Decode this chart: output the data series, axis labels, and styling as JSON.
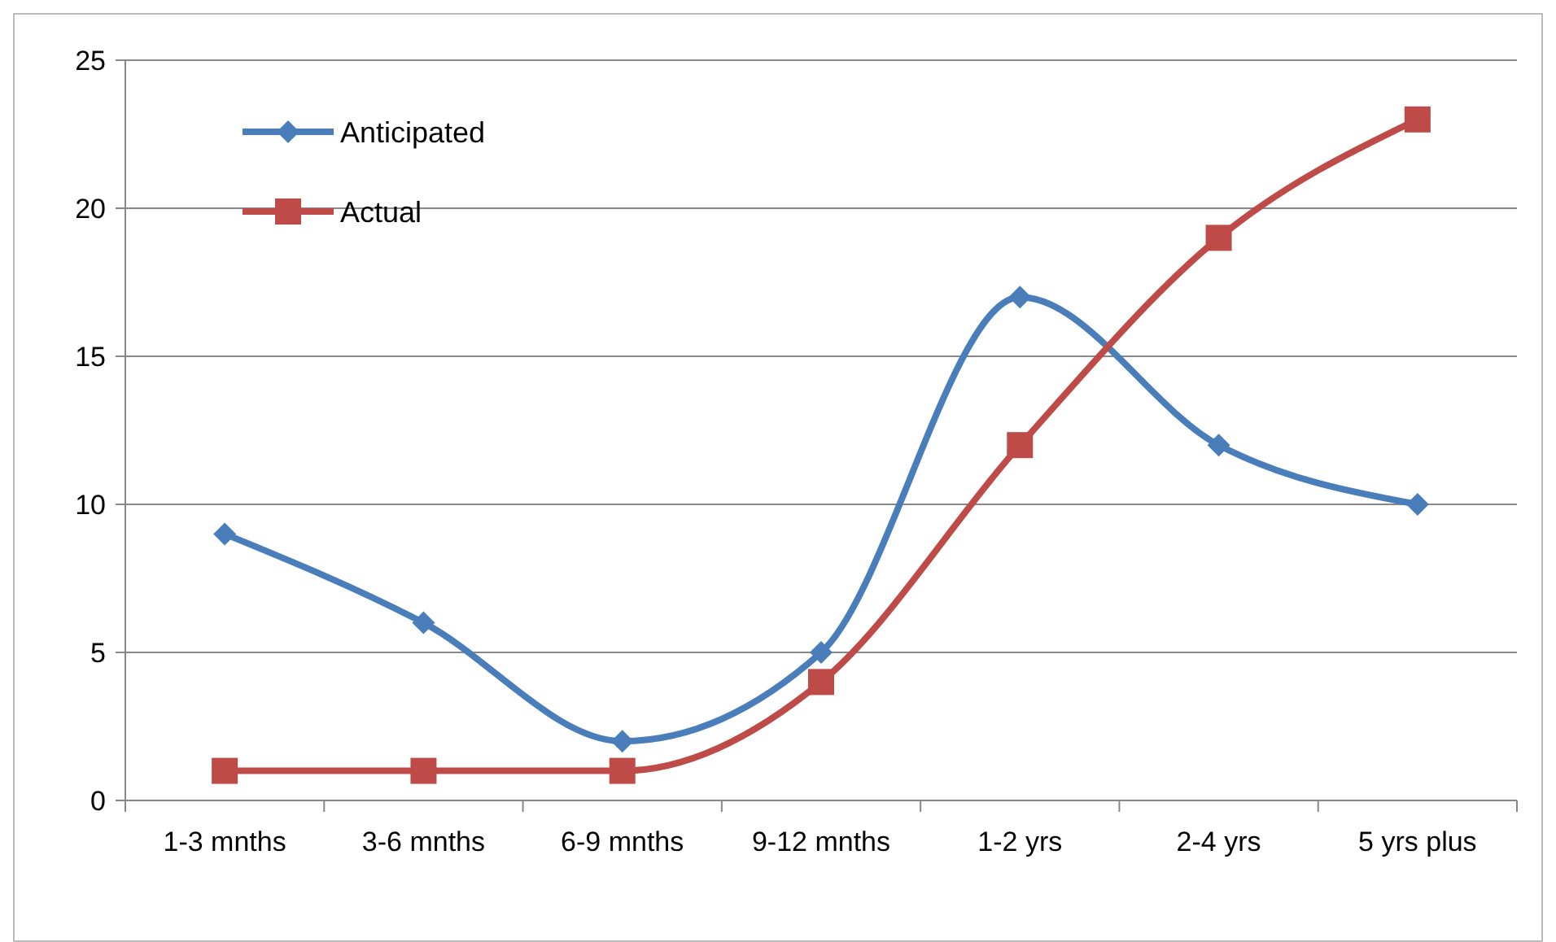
{
  "chart_data": {
    "type": "line",
    "categories": [
      "1-3  mnths",
      "3-6 mnths",
      "6-9 mnths",
      "9-12 mnths",
      "1-2 yrs",
      "2-4 yrs",
      "5 yrs plus"
    ],
    "series": [
      {
        "name": "Anticipated",
        "color": "#4a7ebb",
        "marker": "diamond",
        "values": [
          9,
          6,
          2,
          5,
          17,
          12,
          10
        ]
      },
      {
        "name": "Actual",
        "color": "#be4b48",
        "marker": "square",
        "values": [
          1,
          1,
          1,
          4,
          12,
          19,
          23
        ]
      }
    ],
    "ylim": [
      0,
      25
    ],
    "yticks": [
      0,
      5,
      10,
      15,
      20,
      25
    ],
    "grid": "y",
    "legend": "top left",
    "line_style": "solid"
  }
}
